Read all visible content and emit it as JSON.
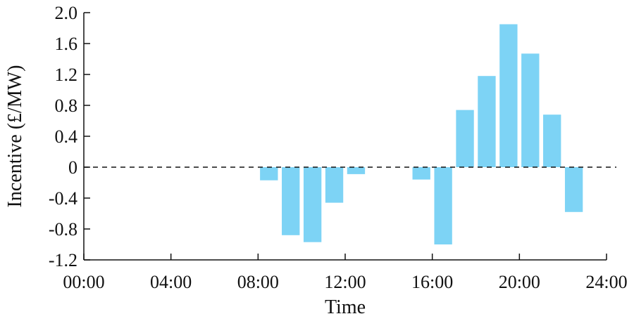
{
  "chart_data": {
    "type": "bar",
    "xlabel": "Time",
    "ylabel": "Incentive (£/MW)",
    "xlim": [
      0,
      24
    ],
    "ylim": [
      -1.2,
      2.0
    ],
    "x_ticks": [
      0,
      4,
      8,
      12,
      16,
      20,
      24
    ],
    "x_tick_labels": [
      "00:00",
      "04:00",
      "08:00",
      "12:00",
      "16:00",
      "20:00",
      "24:00"
    ],
    "y_ticks": [
      -1.2,
      -0.8,
      -0.4,
      0,
      0.4,
      0.8,
      1.2,
      1.6,
      2.0
    ],
    "y_tick_labels": [
      "-1.2",
      "-0.8",
      "-0.4",
      "0",
      "0.4",
      "0.8",
      "1.2",
      "1.6",
      "2.0"
    ],
    "x": [
      9,
      10,
      11,
      12,
      13,
      16,
      17,
      18,
      19,
      20,
      21,
      22,
      23
    ],
    "values": [
      -0.17,
      -0.88,
      -0.97,
      -0.46,
      -0.09,
      -0.16,
      -1.0,
      0.74,
      1.18,
      1.85,
      1.47,
      0.68,
      -0.58
    ],
    "bar_color": "#7dd3f5",
    "zero_line": "dashed",
    "grid": false,
    "legend": "none"
  }
}
